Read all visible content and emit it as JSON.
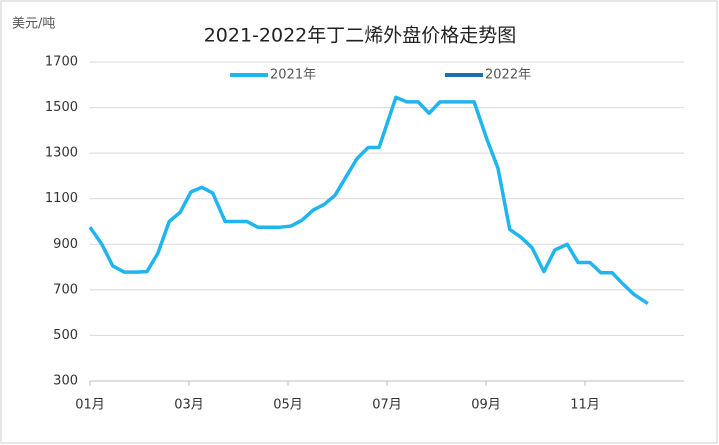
{
  "chart_data": {
    "type": "line",
    "title": "2021-2022年丁二烯外盘价格走势图",
    "y_label": "美元/吨",
    "xlim": [
      1,
      13
    ],
    "xticks": [
      {
        "value": 1,
        "label": "01月"
      },
      {
        "value": 3,
        "label": "03月"
      },
      {
        "value": 5,
        "label": "05月"
      },
      {
        "value": 7,
        "label": "07月"
      },
      {
        "value": 9,
        "label": "09月"
      },
      {
        "value": 11,
        "label": "11月"
      }
    ],
    "ylim": [
      300,
      1700
    ],
    "yticks": [
      300,
      500,
      700,
      900,
      1100,
      1300,
      1500,
      1700
    ],
    "grid": true,
    "legend": "top",
    "series": [
      {
        "name": "2021年",
        "color": "#1fb5ee",
        "x": [
          1.0,
          1.24,
          1.46,
          1.69,
          1.91,
          2.15,
          2.37,
          2.6,
          2.82,
          3.04,
          3.26,
          3.48,
          3.73,
          3.95,
          4.17,
          4.39,
          4.62,
          4.84,
          5.06,
          5.28,
          5.51,
          5.73,
          5.95,
          6.17,
          6.39,
          6.62,
          6.84,
          7.18,
          7.4,
          7.63,
          7.85,
          8.07,
          8.29,
          8.52,
          8.76,
          9.02,
          9.24,
          9.48,
          9.71,
          9.93,
          10.17,
          10.39,
          10.64,
          10.86,
          11.1,
          11.32,
          11.55,
          11.77,
          11.99,
          12.27
        ],
        "values": [
          975,
          900,
          805,
          778,
          778,
          780,
          860,
          1000,
          1040,
          1130,
          1150,
          1125,
          1000,
          1000,
          1000,
          975,
          975,
          975,
          980,
          1005,
          1050,
          1075,
          1115,
          1195,
          1275,
          1325,
          1325,
          1545,
          1525,
          1525,
          1475,
          1525,
          1525,
          1525,
          1525,
          1360,
          1235,
          965,
          930,
          885,
          780,
          875,
          900,
          820,
          820,
          775,
          775,
          725,
          680,
          640
        ]
      },
      {
        "name": "2022年",
        "color": "#1a6fb5",
        "x": [],
        "values": []
      }
    ]
  }
}
